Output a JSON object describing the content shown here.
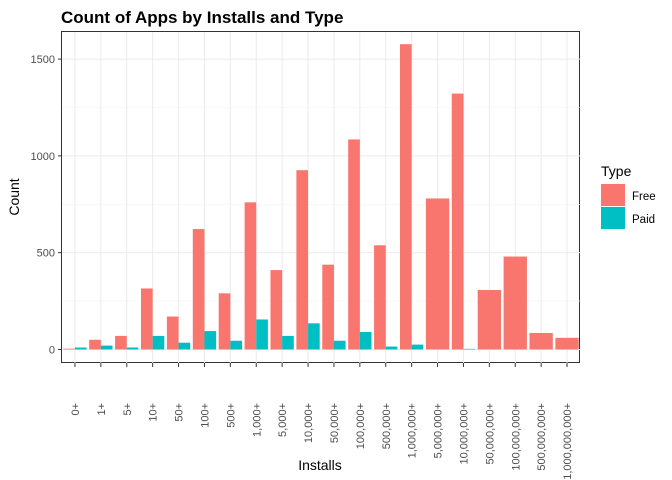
{
  "chart_data": {
    "type": "bar",
    "title": "Count of Apps by Installs and Type",
    "xlabel": "Installs",
    "ylabel": "Count",
    "ylim": [
      -70,
      1640
    ],
    "yticks": [
      0,
      500,
      1000,
      1500
    ],
    "grid": true,
    "legend_position": "right",
    "legend_title": "Type",
    "categories": [
      "0+",
      "1+",
      "5+",
      "10+",
      "50+",
      "100+",
      "500+",
      "1,000+",
      "5,000+",
      "10,000+",
      "50,000+",
      "100,000+",
      "500,000+",
      "1,000,000+",
      "5,000,000+",
      "10,000,000+",
      "50,000,000+",
      "100,000,000+",
      "500,000,000+",
      "1,000,000,000+"
    ],
    "series": [
      {
        "name": "Free",
        "color": "#F8766D",
        "values": [
          4,
          50,
          70,
          315,
          170,
          622,
          290,
          760,
          410,
          926,
          438,
          1085,
          538,
          1577,
          780,
          1322,
          307,
          480,
          85,
          60
        ]
      },
      {
        "name": "Paid",
        "color": "#00BFC4",
        "values": [
          10,
          20,
          10,
          70,
          35,
          95,
          45,
          155,
          70,
          135,
          45,
          90,
          15,
          25,
          0,
          3,
          0,
          0,
          0,
          0
        ]
      }
    ]
  }
}
